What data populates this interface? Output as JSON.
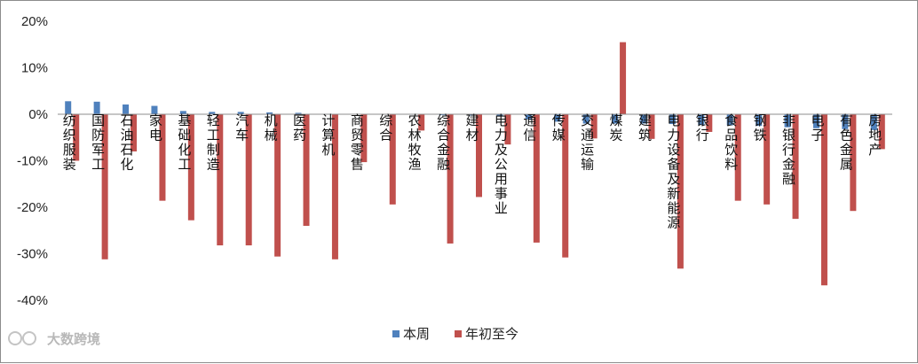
{
  "chart_data": {
    "type": "bar",
    "title": "",
    "xlabel": "",
    "ylabel": "",
    "ylim": [
      -40,
      20
    ],
    "y_ticks": [
      20,
      10,
      0,
      -10,
      -20,
      -30,
      -40
    ],
    "y_tick_labels": [
      "20%",
      "10%",
      "0%",
      "-10%",
      "-20%",
      "-30%",
      "-40%"
    ],
    "grid": false,
    "legend": "bottom-center",
    "categories": [
      "纺织服装",
      "国防军工",
      "石油石化",
      "家电",
      "基础化工",
      "轻工制造",
      "汽车",
      "机械",
      "医药",
      "计算机",
      "商贸零售",
      "综合",
      "农林牧渔",
      "综合金融",
      "建材",
      "电力及公用事业",
      "通信",
      "传媒",
      "交通运输",
      "煤炭",
      "建筑",
      "电力设备及新能源",
      "银行",
      "食品饮料",
      "钢铁",
      "非银行金融",
      "电子",
      "有色金属",
      "房地产"
    ],
    "series": [
      {
        "name": "本周",
        "color": "#4f81bd",
        "values": [
          2.8,
          2.7,
          2.1,
          1.8,
          0.7,
          0.5,
          0.5,
          0.4,
          0.3,
          0.1,
          0.0,
          -0.1,
          -0.1,
          -0.2,
          -0.3,
          -0.4,
          -1.1,
          -1.6,
          -2.0,
          -2.0,
          -2.0,
          -2.1,
          -2.3,
          -2.4,
          -2.5,
          -2.8,
          -3.0,
          -3.2,
          -3.4
        ]
      },
      {
        "name": "年初至今",
        "color": "#c0504d",
        "values": [
          -10.0,
          -31.2,
          -8.0,
          -18.6,
          -22.8,
          -28.2,
          -28.2,
          -30.6,
          -24.0,
          -31.2,
          -10.3,
          -19.4,
          -3.5,
          -27.8,
          -17.8,
          -6.5,
          -27.6,
          -30.8,
          -5.2,
          15.5,
          -5.3,
          -33.2,
          -3.8,
          -18.6,
          -19.4,
          -22.5,
          -36.8,
          -20.8,
          -7.5
        ]
      }
    ]
  },
  "watermark": {
    "text": "大数跨境"
  }
}
